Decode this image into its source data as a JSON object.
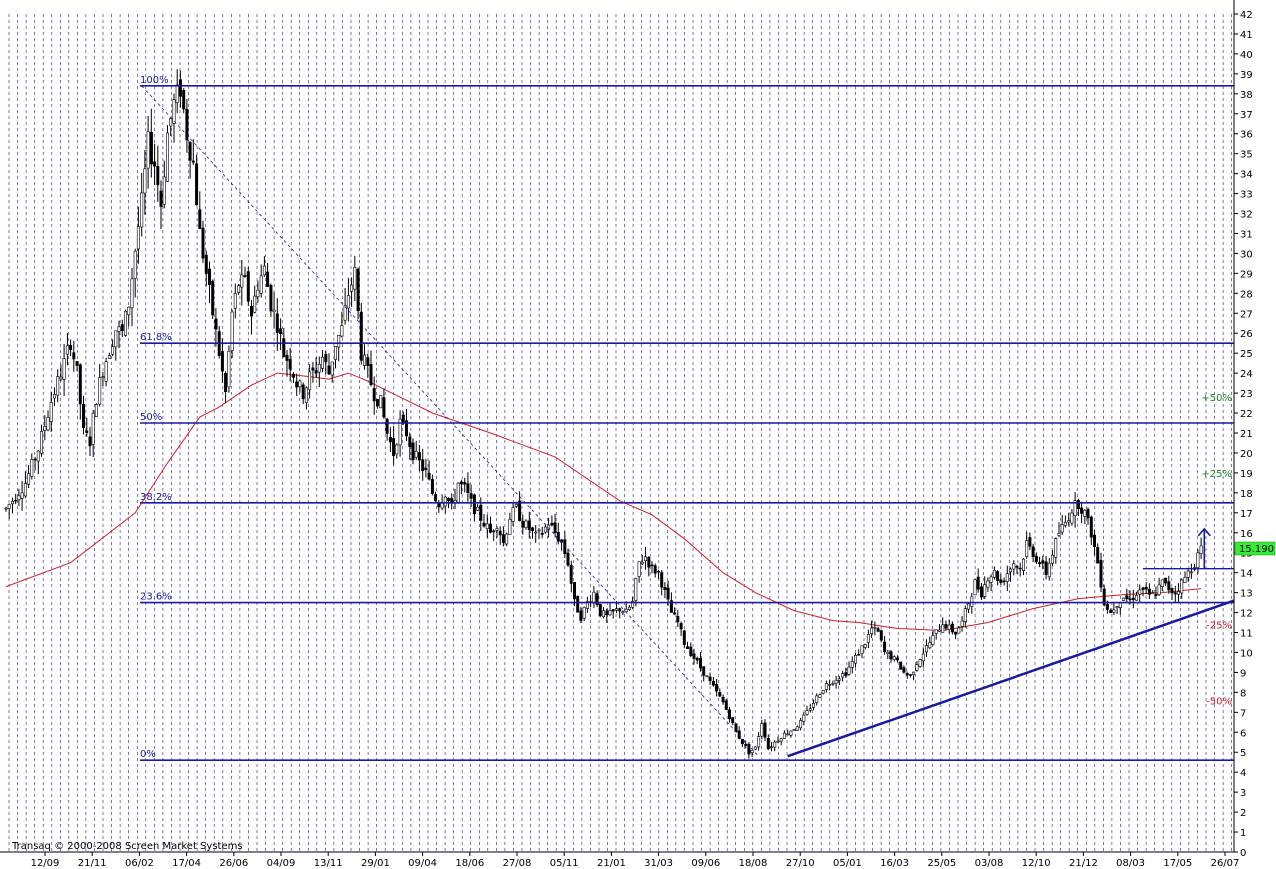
{
  "chart_data": {
    "type": "candlestick",
    "watermark": "Transaq © 2000-2008 Screen Market Systems",
    "last_price": "15.190",
    "y_range": [
      0,
      42
    ],
    "y_ticks": [
      0,
      1,
      2,
      3,
      4,
      5,
      6,
      7,
      8,
      9,
      10,
      11,
      12,
      13,
      14,
      15,
      16,
      17,
      18,
      19,
      20,
      21,
      22,
      23,
      24,
      25,
      26,
      27,
      28,
      29,
      30,
      31,
      32,
      33,
      34,
      35,
      36,
      37,
      38,
      39,
      40,
      41,
      42
    ],
    "x_tick_labels": [
      "12/09",
      "21/11",
      "06/02",
      "17/04",
      "26/06",
      "04/09",
      "13/11",
      "29/01",
      "09/04",
      "18/06",
      "27/08",
      "05/11",
      "21/01",
      "31/03",
      "09/06",
      "18/08",
      "27/10",
      "05/01",
      "16/03",
      "25/05",
      "03/08",
      "12/10",
      "21/12",
      "08/03",
      "17/05",
      "26/07"
    ],
    "fib_levels": [
      {
        "label": "100%",
        "value": 38.4
      },
      {
        "label": "61.8%",
        "value": 25.5
      },
      {
        "label": "50%",
        "value": 21.5
      },
      {
        "label": "38.2%",
        "value": 17.5
      },
      {
        "label": "23.6%",
        "value": 12.5
      },
      {
        "label": "0%",
        "value": 4.6
      }
    ],
    "target_levels": [
      {
        "label": "+50%",
        "value": 22.8
      },
      {
        "label": "+25%",
        "value": 19.0
      },
      {
        "label": "-25%",
        "value": 11.4
      },
      {
        "label": "-50%",
        "value": 7.6
      }
    ],
    "price_path": [
      [
        0,
        17.2
      ],
      [
        6,
        18.5
      ],
      [
        10,
        20.2
      ],
      [
        14,
        22.6
      ],
      [
        18,
        24.5
      ],
      [
        20,
        25.6
      ],
      [
        22,
        24.0
      ],
      [
        24,
        21.0
      ],
      [
        26,
        20.6
      ],
      [
        28,
        22.8
      ],
      [
        30,
        24.2
      ],
      [
        32,
        25.2
      ],
      [
        34,
        26.2
      ],
      [
        36,
        26.0
      ],
      [
        38,
        27.5
      ],
      [
        40,
        30.2
      ],
      [
        42,
        32.5
      ],
      [
        44,
        35.5
      ],
      [
        46,
        34.5
      ],
      [
        48,
        32.5
      ],
      [
        50,
        36.0
      ],
      [
        52,
        37.5
      ],
      [
        54,
        38.3
      ],
      [
        56,
        36.0
      ],
      [
        58,
        34.5
      ],
      [
        60,
        31.0
      ],
      [
        62,
        29.0
      ],
      [
        64,
        27.0
      ],
      [
        66,
        25.0
      ],
      [
        68,
        23.0
      ],
      [
        70,
        27.0
      ],
      [
        72,
        28.5
      ],
      [
        74,
        28.5
      ],
      [
        76,
        27.0
      ],
      [
        78,
        28.5
      ],
      [
        80,
        29.2
      ],
      [
        82,
        27.5
      ],
      [
        84,
        26.5
      ],
      [
        86,
        25.0
      ],
      [
        88,
        24.5
      ],
      [
        90,
        23.5
      ],
      [
        92,
        23.0
      ],
      [
        94,
        23.8
      ],
      [
        96,
        24.2
      ],
      [
        98,
        24.8
      ],
      [
        100,
        24.0
      ],
      [
        102,
        25.5
      ],
      [
        104,
        26.2
      ],
      [
        106,
        28.0
      ],
      [
        108,
        29.0
      ],
      [
        110,
        25.0
      ],
      [
        112,
        24.0
      ],
      [
        114,
        23.0
      ],
      [
        116,
        22.5
      ],
      [
        118,
        21.0
      ],
      [
        120,
        20.0
      ],
      [
        122,
        21.5
      ],
      [
        124,
        21.0
      ],
      [
        126,
        20.0
      ],
      [
        128,
        19.5
      ],
      [
        130,
        19.0
      ],
      [
        132,
        18.0
      ],
      [
        134,
        17.5
      ],
      [
        136,
        18.0
      ],
      [
        138,
        17.2
      ],
      [
        140,
        18.5
      ],
      [
        142,
        18.2
      ],
      [
        144,
        17.5
      ],
      [
        146,
        17.0
      ],
      [
        148,
        16.5
      ],
      [
        150,
        16.0
      ],
      [
        152,
        16.5
      ],
      [
        154,
        15.5
      ],
      [
        156,
        16.8
      ],
      [
        158,
        17.2
      ],
      [
        160,
        16.5
      ],
      [
        162,
        16.2
      ],
      [
        164,
        15.8
      ],
      [
        166,
        16.0
      ],
      [
        168,
        16.5
      ],
      [
        170,
        16.0
      ],
      [
        172,
        15.5
      ],
      [
        174,
        14.5
      ],
      [
        176,
        12.5
      ],
      [
        178,
        11.8
      ],
      [
        180,
        12.5
      ],
      [
        182,
        13.0
      ],
      [
        184,
        12.0
      ],
      [
        186,
        11.8
      ],
      [
        188,
        12.0
      ],
      [
        190,
        12.2
      ],
      [
        192,
        12.0
      ],
      [
        194,
        12.5
      ],
      [
        196,
        14.5
      ],
      [
        198,
        14.8
      ],
      [
        200,
        14.2
      ],
      [
        202,
        14.0
      ],
      [
        204,
        13.0
      ],
      [
        206,
        12.0
      ],
      [
        208,
        11.5
      ],
      [
        210,
        10.5
      ],
      [
        212,
        10.0
      ],
      [
        214,
        9.5
      ],
      [
        216,
        9.0
      ],
      [
        218,
        8.5
      ],
      [
        220,
        8.0
      ],
      [
        222,
        7.5
      ],
      [
        224,
        6.8
      ],
      [
        226,
        6.0
      ],
      [
        228,
        5.5
      ],
      [
        230,
        5.0
      ],
      [
        232,
        5.2
      ],
      [
        234,
        6.5
      ],
      [
        236,
        5.2
      ],
      [
        238,
        5.5
      ],
      [
        240,
        5.8
      ],
      [
        242,
        6.0
      ],
      [
        244,
        6.2
      ],
      [
        246,
        6.5
      ],
      [
        248,
        7.0
      ],
      [
        250,
        7.5
      ],
      [
        252,
        8.0
      ],
      [
        254,
        8.4
      ],
      [
        256,
        8.6
      ],
      [
        258,
        8.8
      ],
      [
        260,
        9.0
      ],
      [
        262,
        9.5
      ],
      [
        264,
        10.0
      ],
      [
        266,
        10.5
      ],
      [
        268,
        11.2
      ],
      [
        270,
        11.0
      ],
      [
        272,
        10.0
      ],
      [
        274,
        9.8
      ],
      [
        276,
        9.5
      ],
      [
        278,
        9.0
      ],
      [
        280,
        8.8
      ],
      [
        282,
        9.5
      ],
      [
        284,
        10.0
      ],
      [
        286,
        10.5
      ],
      [
        288,
        11.0
      ],
      [
        290,
        11.5
      ],
      [
        292,
        11.2
      ],
      [
        294,
        11.0
      ],
      [
        296,
        11.5
      ],
      [
        298,
        12.5
      ],
      [
        300,
        13.5
      ],
      [
        302,
        13.0
      ],
      [
        304,
        13.8
      ],
      [
        306,
        14.0
      ],
      [
        308,
        13.5
      ],
      [
        310,
        14.0
      ],
      [
        312,
        14.5
      ],
      [
        314,
        14.2
      ],
      [
        316,
        15.5
      ],
      [
        318,
        15.0
      ],
      [
        320,
        14.5
      ],
      [
        322,
        14.0
      ],
      [
        324,
        15.0
      ],
      [
        326,
        16.0
      ],
      [
        328,
        16.5
      ],
      [
        330,
        17.2
      ],
      [
        332,
        17.5
      ],
      [
        334,
        17.0
      ],
      [
        336,
        16.0
      ],
      [
        338,
        14.5
      ],
      [
        340,
        12.5
      ],
      [
        342,
        12.0
      ],
      [
        344,
        12.5
      ],
      [
        346,
        12.8
      ],
      [
        348,
        12.6
      ],
      [
        350,
        13.0
      ],
      [
        352,
        13.2
      ],
      [
        354,
        12.8
      ],
      [
        356,
        13.0
      ],
      [
        358,
        13.5
      ],
      [
        360,
        13.2
      ],
      [
        362,
        13.0
      ],
      [
        364,
        13.5
      ],
      [
        366,
        14.0
      ],
      [
        368,
        14.5
      ],
      [
        370,
        15.2
      ]
    ],
    "moving_average": [
      [
        0,
        13.3
      ],
      [
        20,
        14.5
      ],
      [
        40,
        17.0
      ],
      [
        50,
        19.5
      ],
      [
        60,
        21.8
      ],
      [
        66,
        22.3
      ],
      [
        76,
        23.4
      ],
      [
        84,
        24.0
      ],
      [
        90,
        23.9
      ],
      [
        100,
        23.7
      ],
      [
        106,
        24.0
      ],
      [
        112,
        23.6
      ],
      [
        122,
        22.8
      ],
      [
        132,
        22.0
      ],
      [
        150,
        21.0
      ],
      [
        170,
        19.8
      ],
      [
        190,
        17.6
      ],
      [
        200,
        16.9
      ],
      [
        210,
        15.7
      ],
      [
        222,
        14.0
      ],
      [
        232,
        13.0
      ],
      [
        244,
        12.1
      ],
      [
        256,
        11.6
      ],
      [
        264,
        11.5
      ],
      [
        276,
        11.2
      ],
      [
        290,
        11.1
      ],
      [
        304,
        11.5
      ],
      [
        318,
        12.2
      ],
      [
        332,
        12.7
      ],
      [
        346,
        12.9
      ],
      [
        358,
        13.0
      ],
      [
        370,
        13.2
      ]
    ]
  }
}
